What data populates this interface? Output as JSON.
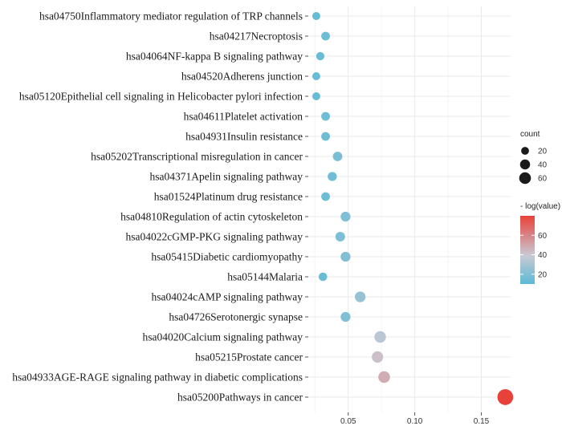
{
  "chart_data": {
    "type": "scatter",
    "title": "",
    "xlabel": "",
    "ylabel": "",
    "xlim": [
      0.02,
      0.172
    ],
    "xticks": [
      0.05,
      0.1,
      0.15
    ],
    "xtick_labels": [
      "0.05",
      "0.10",
      "0.15"
    ],
    "grid": true,
    "categories": [
      "hsa04750Inflammatory mediator regulation of TRP channels",
      "hsa04217Necroptosis",
      "hsa04064NF-kappa B signaling pathway",
      "hsa04520Adherens junction",
      "hsa05120Epithelial cell signaling in Helicobacter pylori infection",
      "hsa04611Platelet activation",
      "hsa04931Insulin resistance",
      "hsa05202Transcriptional misregulation in cancer",
      "hsa04371Apelin signaling pathway",
      "hsa01524Platinum drug resistance",
      "hsa04810Regulation of actin cytoskeleton",
      "hsa04022cGMP-PKG signaling pathway",
      "hsa05415Diabetic cardiomyopathy",
      "hsa05144Malaria",
      "hsa04024cAMP signaling pathway",
      "hsa04726Serotonergic synapse",
      "hsa04020Calcium signaling pathway",
      "hsa05215Prostate cancer",
      "hsa04933AGE-RAGE signaling pathway in diabetic complications",
      "hsa05200Pathways in cancer"
    ],
    "x": [
      0.026,
      0.033,
      0.029,
      0.026,
      0.026,
      0.033,
      0.033,
      0.042,
      0.038,
      0.033,
      0.048,
      0.044,
      0.048,
      0.031,
      0.059,
      0.048,
      0.074,
      0.072,
      0.077,
      0.168
    ],
    "count": [
      10,
      13,
      11,
      10,
      10,
      13,
      13,
      17,
      15,
      13,
      19,
      18,
      19,
      12,
      24,
      19,
      30,
      29,
      31,
      68
    ],
    "neg_log_value": [
      13,
      15,
      14,
      13,
      13,
      15,
      15,
      18,
      16,
      15,
      20,
      19,
      20,
      14,
      26,
      20,
      36,
      42,
      48,
      80
    ],
    "legend": {
      "size_title": "count",
      "size_values": [
        20,
        40,
        60
      ],
      "size_labels": [
        "20",
        "40",
        "60"
      ],
      "color_title": "- log(value)",
      "color_range": [
        10,
        80
      ],
      "color_ticks": [
        20,
        40,
        60
      ],
      "color_tick_labels": [
        "20",
        "40",
        "60"
      ],
      "colors": [
        "#5bbad5",
        "#c9c9d4",
        "#e8413a"
      ]
    }
  }
}
